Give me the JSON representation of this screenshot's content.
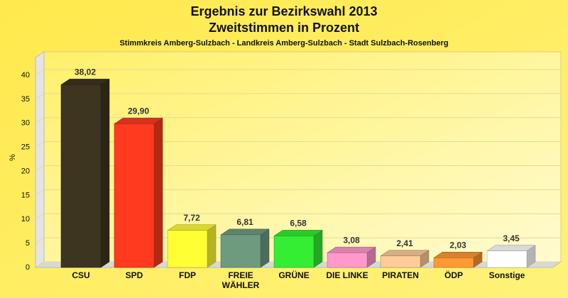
{
  "chart_data": {
    "type": "bar3d",
    "title": "Ergebnis zur Bezirkswahl 2013",
    "subtitle": "Zweitstimmen in Prozent",
    "caption": "Stimmkreis Amberg-Sulzbach - Landkreis Amberg-Sulzbach - Stadt Sulzbach-Rosenberg",
    "y_label": "%",
    "categories": [
      "CSU",
      "SPD",
      "FDP",
      "FREIE WÄHLER",
      "GRÜNE",
      "DIE LINKE",
      "PIRATEN",
      "ÖDP",
      "Sonstige"
    ],
    "values": [
      38.02,
      29.9,
      7.72,
      6.81,
      6.58,
      3.08,
      2.41,
      2.03,
      3.45
    ],
    "value_labels": [
      "38,02",
      "29,90",
      "7,72",
      "6,81",
      "6,58",
      "3,08",
      "2,41",
      "2,03",
      "3,45"
    ],
    "colors": [
      "#3d3520",
      "#ff3a1e",
      "#ffff33",
      "#6e9a80",
      "#33ee33",
      "#ff99cc",
      "#ffcc99",
      "#ff9933",
      "#ffffff"
    ],
    "ylim": [
      0,
      45
    ],
    "yticks": [
      0,
      5,
      10,
      15,
      20,
      25,
      30,
      35,
      40
    ],
    "grid": true
  }
}
